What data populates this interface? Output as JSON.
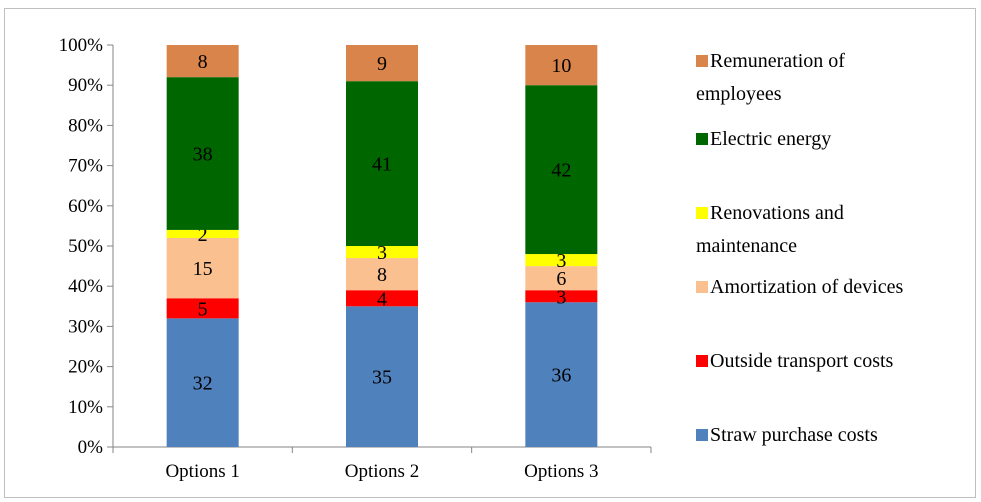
{
  "chart_data": {
    "type": "bar",
    "stacked": true,
    "percent": true,
    "categories": [
      "Options 1",
      "Options 2",
      "Options 3"
    ],
    "series": [
      {
        "name": "Straw purchase costs",
        "color": "#4f81bd",
        "values": [
          32,
          35,
          36
        ]
      },
      {
        "name": "Outside transport costs",
        "color": "#ff0000",
        "values": [
          5,
          4,
          3
        ]
      },
      {
        "name": "Amortization of devices",
        "color": "#fac090",
        "values": [
          15,
          8,
          6
        ]
      },
      {
        "name": "Renovations and maintenance",
        "color": "#ffff00",
        "values": [
          2,
          3,
          3
        ]
      },
      {
        "name": "Electric energy",
        "color": "#006600",
        "values": [
          38,
          41,
          42
        ]
      },
      {
        "name": "Remuneration of employees",
        "color": "#d9844a",
        "values": [
          8,
          9,
          10
        ]
      }
    ],
    "y_ticks": [
      "0%",
      "10%",
      "20%",
      "30%",
      "40%",
      "50%",
      "60%",
      "70%",
      "80%",
      "90%",
      "100%"
    ],
    "ylim": [
      0,
      100
    ],
    "legend_position": "right",
    "grid": false
  }
}
